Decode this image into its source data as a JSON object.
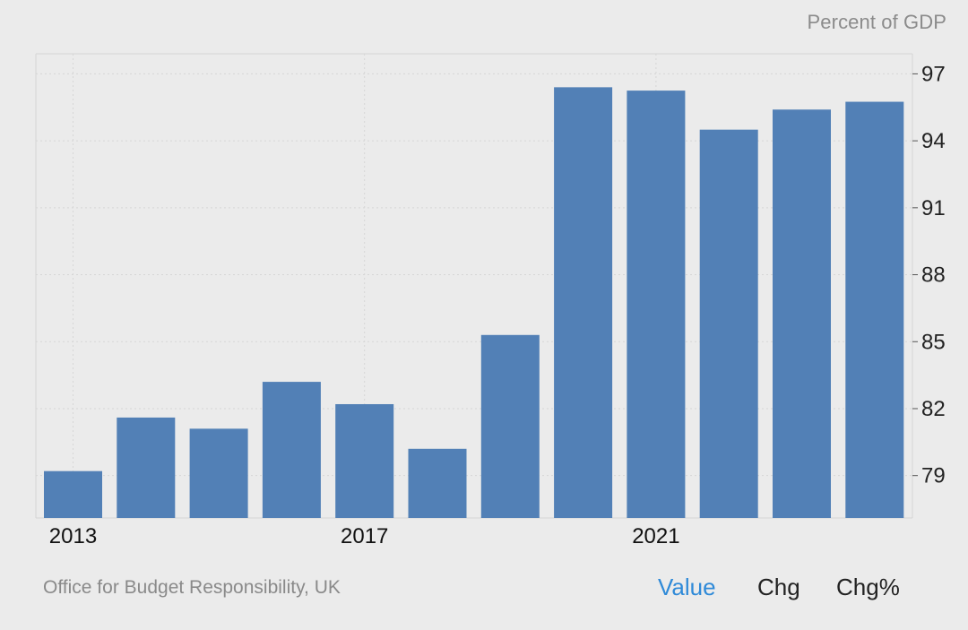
{
  "header": {
    "unit_label": "Percent of GDP"
  },
  "footer": {
    "source": "Office for Budget Responsibility, UK",
    "tabs": [
      {
        "label": "Value",
        "active": true
      },
      {
        "label": "Chg",
        "active": false
      },
      {
        "label": "Chg%",
        "active": false
      }
    ]
  },
  "colors": {
    "bar": "#5280b6",
    "active_tab": "#2f8ad8",
    "background": "#ebebeb"
  },
  "chart_data": {
    "type": "bar",
    "categories": [
      "2013",
      "2014",
      "2015",
      "2016",
      "2017",
      "2018",
      "2019",
      "2020",
      "2021",
      "2022",
      "2023",
      "2024"
    ],
    "values": [
      79.2,
      81.6,
      81.1,
      83.2,
      82.2,
      80.2,
      85.3,
      96.4,
      96.25,
      94.5,
      95.4,
      95.75
    ],
    "x_tick_labels": [
      "2013",
      "2017",
      "2021"
    ],
    "y_ticks": [
      79,
      82,
      85,
      88,
      91,
      94,
      97
    ],
    "ylim": [
      77.1,
      97.9
    ],
    "ylabel": "Percent of GDP",
    "y_axis_position": "right",
    "grid": true
  }
}
